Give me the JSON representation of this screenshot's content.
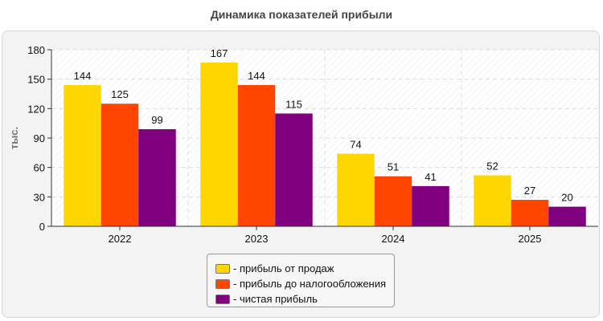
{
  "title": "Динамика показателей прибыли",
  "colors": {
    "panel_bg": "#f3f3f3",
    "plot_bg": "#ffffff",
    "grid": "#dddddd",
    "axis": "#333333"
  },
  "chart_data": {
    "type": "bar",
    "title": "Динамика показателей прибыли",
    "xlabel": "",
    "ylabel": "тыс.",
    "ylim": [
      0,
      180
    ],
    "yticks": [
      0,
      30,
      60,
      90,
      120,
      150,
      180
    ],
    "categories": [
      "2022",
      "2023",
      "2024",
      "2025"
    ],
    "grid": true,
    "legend_position": "bottom-center",
    "series": [
      {
        "name": "- прибыль от продаж",
        "color": "#ffd700",
        "values": [
          144,
          167,
          74,
          52
        ]
      },
      {
        "name": "- прибыль до налогообложения",
        "color": "#ff4500",
        "values": [
          125,
          144,
          51,
          27
        ]
      },
      {
        "name": "- чистая прибыль",
        "color": "#800080",
        "values": [
          99,
          115,
          41,
          20
        ]
      }
    ]
  }
}
